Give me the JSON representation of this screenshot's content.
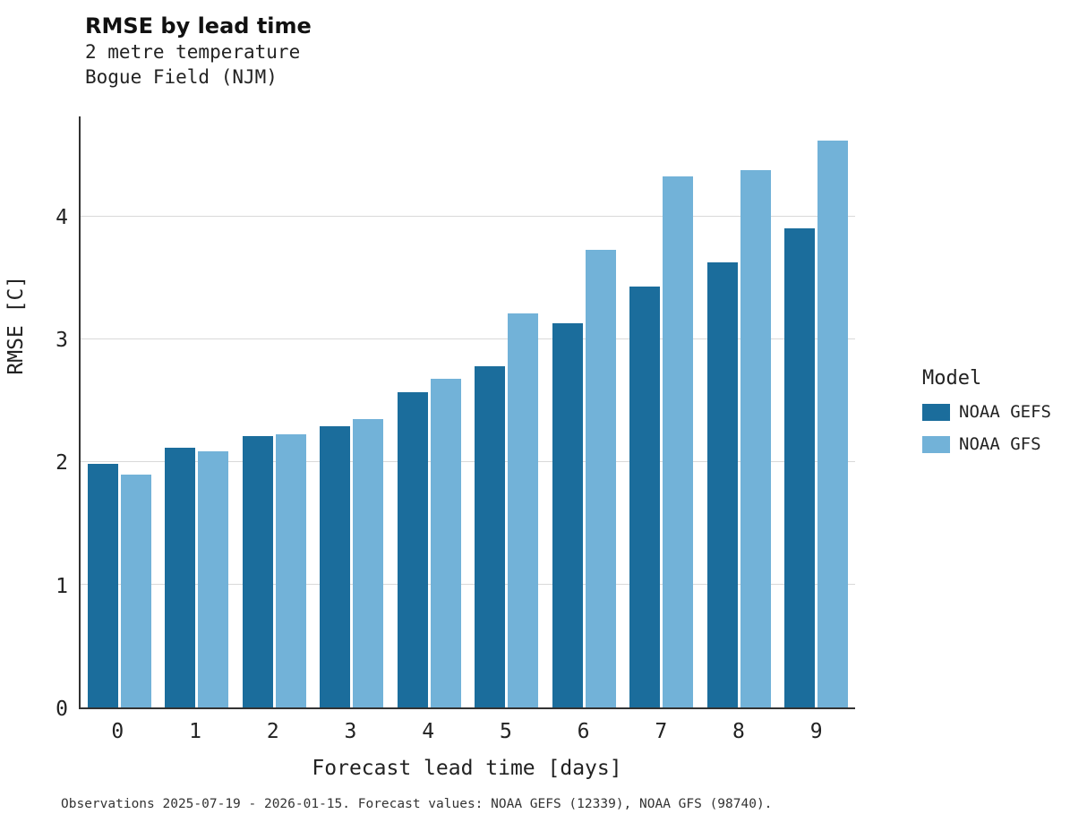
{
  "chart_data": {
    "type": "bar",
    "title": "RMSE by lead time",
    "subtitle": [
      "2 metre temperature",
      "Bogue Field (NJM)"
    ],
    "xlabel": "Forecast lead time [days]",
    "ylabel": "RMSE [C]",
    "categories": [
      "0",
      "1",
      "2",
      "3",
      "4",
      "5",
      "6",
      "7",
      "8",
      "9"
    ],
    "series": [
      {
        "name": "NOAA GEFS",
        "color": "#1b6d9c",
        "values": [
          1.99,
          2.12,
          2.21,
          2.29,
          2.57,
          2.78,
          3.13,
          3.43,
          3.63,
          3.91
        ]
      },
      {
        "name": "NOAA GFS",
        "color": "#72b2d8",
        "values": [
          1.9,
          2.09,
          2.23,
          2.35,
          2.68,
          3.21,
          3.73,
          4.33,
          4.38,
          4.62
        ]
      }
    ],
    "ylim": [
      0,
      4.82
    ],
    "yticks": [
      0,
      1,
      2,
      3,
      4
    ],
    "grid": "horizontal",
    "legend_title": "Model",
    "legend_position": "right",
    "caption": "Observations 2025-07-19 - 2026-01-15. Forecast values: NOAA GEFS (12339), NOAA GFS (98740)."
  }
}
